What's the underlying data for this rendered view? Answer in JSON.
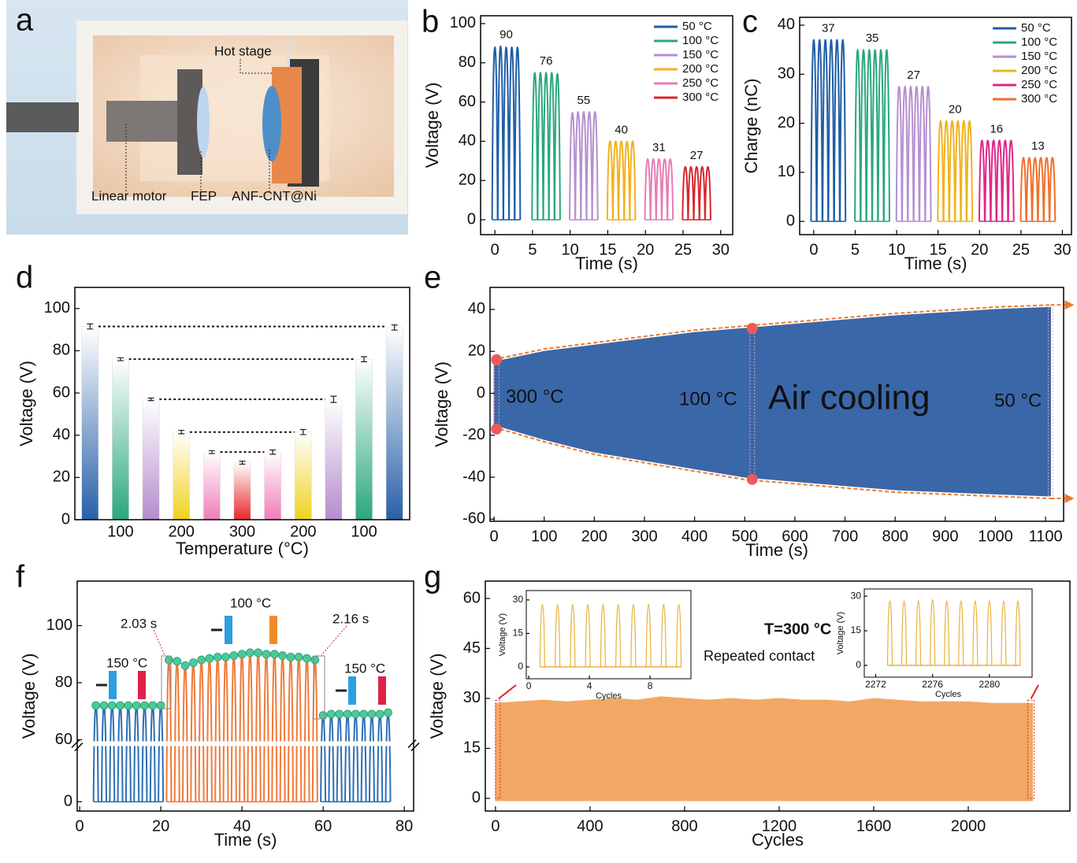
{
  "panel_a": {
    "letter": "a",
    "labels": [
      "Hot stage",
      "Linear motor",
      "FEP",
      "ANF-CNT@Ni"
    ]
  },
  "chart_data": [
    {
      "letter": "b",
      "type": "pulse",
      "xlabel": "Time (s)",
      "ylabel": "Voltage (V)",
      "xlim": [
        -1.9,
        31.6
      ],
      "ylim": [
        -7.6,
        104
      ],
      "xticks": [
        0,
        5,
        10,
        15,
        20,
        25,
        30
      ],
      "yticks": [
        0,
        20,
        40,
        60,
        80,
        100
      ],
      "legend": "upper right",
      "peak_labels": [
        90,
        76,
        55,
        40,
        31,
        27
      ],
      "series": [
        {
          "name": "50 °C",
          "color": "#1d5ea8",
          "x": [
            0,
            0.75,
            1.5,
            2.25,
            3
          ],
          "values": [
            88,
            88.5,
            88,
            88,
            88
          ]
        },
        {
          "name": "100 °C",
          "color": "#2aa87a",
          "x": [
            5.3,
            6.05,
            6.8,
            7.55,
            8.3
          ],
          "values": [
            75,
            75,
            75,
            75,
            74.5
          ]
        },
        {
          "name": "150 °C",
          "color": "#b58fd0",
          "x": [
            10.3,
            11.05,
            11.8,
            12.55,
            13.3
          ],
          "values": [
            54.5,
            55,
            55,
            55,
            55
          ]
        },
        {
          "name": "200 °C",
          "color": "#f2b21c",
          "x": [
            15.3,
            16.05,
            16.8,
            17.55,
            18.3
          ],
          "values": [
            40,
            40,
            40,
            40,
            40
          ]
        },
        {
          "name": "250 °C",
          "color": "#e87bb5",
          "x": [
            20.3,
            21.05,
            21.8,
            22.55,
            23.3
          ],
          "values": [
            31,
            31,
            31,
            31,
            31
          ]
        },
        {
          "name": "300 °C",
          "color": "#d8262c",
          "x": [
            25.3,
            26.05,
            26.8,
            27.55,
            28.3
          ],
          "values": [
            27,
            27,
            27,
            27,
            27
          ]
        }
      ]
    },
    {
      "letter": "c",
      "type": "pulse",
      "xlabel": "Time (s)",
      "ylabel": "Charge (nC)",
      "xlim": [
        -1.7,
        31.1
      ],
      "ylim": [
        -2.7,
        41.6
      ],
      "xticks": [
        0,
        5,
        10,
        15,
        20,
        25,
        30
      ],
      "yticks": [
        0,
        10,
        20,
        30,
        40
      ],
      "legend": "upper right",
      "peak_labels": [
        37,
        35,
        27,
        20,
        16,
        13
      ],
      "series": [
        {
          "name": "50 °C",
          "color": "#1d5ea8",
          "x": [
            0,
            0.7,
            1.4,
            2.1,
            2.8,
            3.5
          ],
          "values": [
            37,
            37,
            37,
            37,
            37,
            37
          ]
        },
        {
          "name": "100 °C",
          "color": "#2aa87a",
          "x": [
            5.3,
            6,
            6.7,
            7.4,
            8.1,
            8.8
          ],
          "values": [
            35,
            35,
            35,
            35,
            35,
            35
          ]
        },
        {
          "name": "150 °C",
          "color": "#b58fd0",
          "x": [
            10.3,
            11,
            11.7,
            12.4,
            13.1,
            13.8
          ],
          "values": [
            27.5,
            27.5,
            27.5,
            27.5,
            27.5,
            27.5
          ]
        },
        {
          "name": "200 °C",
          "color": "#f2b21c",
          "x": [
            15.3,
            16,
            16.7,
            17.4,
            18.1,
            18.8
          ],
          "values": [
            20.5,
            20.5,
            20.5,
            20.5,
            20.5,
            20.5
          ]
        },
        {
          "name": "250 °C",
          "color": "#e0258a",
          "x": [
            20.3,
            21,
            21.7,
            22.4,
            23.1,
            23.8
          ],
          "values": [
            16.5,
            16.5,
            16.5,
            16.5,
            16.5,
            16.5
          ]
        },
        {
          "name": "300 °C",
          "color": "#ef6f2a",
          "x": [
            25.3,
            26,
            26.7,
            27.4,
            28.1,
            28.8
          ],
          "values": [
            13,
            13,
            13,
            13,
            13,
            13
          ]
        }
      ]
    },
    {
      "letter": "d",
      "type": "bar",
      "xlabel": "Temperature (°C)",
      "ylabel": "Voltage (V)",
      "ylim": [
        0,
        110
      ],
      "yticks": [
        0,
        20,
        40,
        60,
        80,
        100
      ],
      "categories": [
        null,
        "100",
        null,
        "200",
        null,
        "300",
        null,
        "200",
        null,
        "100",
        null
      ],
      "values": [
        91.5,
        76,
        57,
        41.5,
        32,
        27,
        32,
        41.5,
        57,
        76,
        91
      ],
      "errors": [
        1.2,
        0.7,
        0.6,
        0.8,
        0.7,
        0.7,
        1,
        1.2,
        1.5,
        1.2,
        1.2
      ],
      "colors": [
        "#2860a8",
        "#2aa77d",
        "#b48ccc",
        "#f0d21e",
        "#ef7cb8",
        "#e8262c",
        "#ef7cb8",
        "#f0d21e",
        "#b48ccc",
        "#2aa77d",
        "#2860a8"
      ]
    },
    {
      "letter": "e",
      "type": "envelope",
      "xlabel": "Time (s)",
      "ylabel": "Voltage (V)",
      "xlim": [
        -8,
        1136
      ],
      "ylim": [
        -61,
        50.5
      ],
      "xticks": [
        0,
        100,
        200,
        300,
        400,
        500,
        600,
        700,
        800,
        900,
        1000,
        1100
      ],
      "yticks": [
        -60,
        -40,
        -20,
        0,
        20,
        40
      ],
      "color": "#3a67a8",
      "trend_color": "#ef7a2d",
      "marker_color": "#ee5a5a",
      "x": [
        0,
        100,
        200,
        300,
        400,
        500,
        600,
        700,
        800,
        900,
        1000,
        1110
      ],
      "upper": [
        15,
        20,
        23,
        26,
        29,
        31,
        33,
        35,
        37,
        38.5,
        40,
        41
      ],
      "lower": [
        -15,
        -22,
        -28,
        -32,
        -36,
        -40,
        -42,
        -44,
        -46,
        -47,
        -48,
        -49
      ],
      "markers": {
        "x": [
          5,
          5,
          515,
          515
        ],
        "y": [
          16,
          -17,
          31,
          -41
        ]
      },
      "annotations": [
        "300 °C",
        "100 °C",
        "Air cooling",
        "50 °C"
      ]
    },
    {
      "letter": "f",
      "type": "broken_pulse",
      "xlabel": "Time (s)",
      "ylabel": "Voltage (V)",
      "xlim": [
        -0.6,
        82.3
      ],
      "ylim": [
        -9,
        115.6
      ],
      "ybreak": 60,
      "xticks": [
        0,
        20,
        40,
        60,
        80
      ],
      "yticks": [
        0,
        60,
        80,
        100
      ],
      "dot_color": "#4cc99a",
      "series": [
        {
          "color": "#2c6fb5",
          "x": [
            4,
            6,
            8,
            10,
            12,
            14,
            16,
            18,
            20
          ],
          "values": [
            72,
            72,
            72,
            72,
            72,
            72,
            72,
            72,
            72
          ]
        },
        {
          "color": "#ef7a3a",
          "x": [
            22,
            24,
            26,
            28,
            30,
            32,
            34,
            36,
            38,
            40,
            42,
            44,
            46,
            48,
            50,
            52,
            54,
            56,
            58
          ],
          "values": [
            88,
            87.5,
            86,
            87,
            88,
            88.5,
            89,
            89,
            89.5,
            90,
            90.5,
            90.5,
            90,
            90,
            89.5,
            89,
            89,
            88.5,
            88
          ]
        },
        {
          "color": "#2c6fb5",
          "x": [
            60,
            62,
            64,
            66,
            68,
            70,
            72,
            74,
            76
          ],
          "values": [
            68.5,
            69,
            69,
            69,
            69,
            69,
            69,
            69,
            69.5
          ]
        }
      ],
      "annotations": [
        "150 °C",
        "100 °C",
        "150 °C",
        "2.03 s",
        "2.16 s"
      ]
    },
    {
      "letter": "g",
      "type": "dense",
      "xlabel": "Cycles",
      "ylabel": "Voltage (V)",
      "xlim": [
        -43,
        2430
      ],
      "ylim": [
        -3.8,
        65.2
      ],
      "xticks": [
        0,
        400,
        800,
        1200,
        1600,
        2000
      ],
      "yticks": [
        0,
        15,
        30,
        45,
        60
      ],
      "color": "#f2a865",
      "x": [
        0,
        100,
        200,
        300,
        400,
        500,
        600,
        700,
        800,
        900,
        1000,
        1100,
        1200,
        1300,
        1400,
        1500,
        1600,
        1700,
        1800,
        1900,
        2000,
        2100,
        2200,
        2272
      ],
      "values": [
        28.5,
        29,
        29.5,
        29,
        29.5,
        30,
        29.5,
        30.5,
        30,
        29.5,
        30,
        29.5,
        30,
        29.5,
        29.5,
        29,
        30,
        29.5,
        29,
        29,
        29,
        28.5,
        28.5,
        28.5
      ],
      "annotations": [
        "T=300 °C",
        "Repeated contact"
      ]
    },
    {
      "type": "pulse",
      "xlabel": "Cycles",
      "ylabel": "Voltage (V)",
      "xlim": [
        -0.16,
        10.7
      ],
      "ylim": [
        -5.3,
        34.2
      ],
      "xticks": [
        0,
        4,
        8
      ],
      "yticks": [
        0,
        15,
        30
      ],
      "series": [
        {
          "color": "#e8b23a",
          "x": [
            0.9,
            1.9,
            2.9,
            3.9,
            4.9,
            5.9,
            6.9,
            7.9,
            8.9,
            9.9
          ],
          "values": [
            28,
            28,
            28,
            28,
            28,
            28,
            28,
            28,
            28,
            28
          ]
        }
      ]
    },
    {
      "type": "pulse",
      "xlabel": "Cycles",
      "ylabel": "Voltage (V)",
      "xlim": [
        2271.2,
        2283
      ],
      "ylim": [
        -5.1,
        33.1
      ],
      "xticks": [
        2272,
        2276,
        2280
      ],
      "yticks": [
        0,
        15,
        30
      ],
      "series": [
        {
          "color": "#e8b23a",
          "x": [
            2273,
            2274,
            2275,
            2276,
            2277,
            2278,
            2279,
            2280,
            2281,
            2282
          ],
          "values": [
            28,
            28,
            28,
            28.5,
            28,
            28,
            28,
            28,
            28,
            28
          ]
        }
      ]
    }
  ]
}
